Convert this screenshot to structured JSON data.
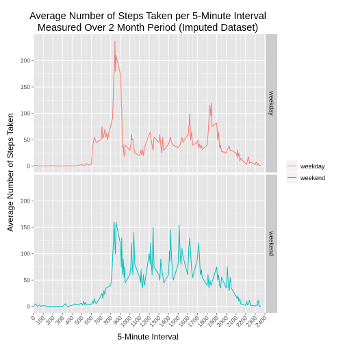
{
  "chart_data": {
    "type": "line",
    "title_lines": [
      "Average Number of Steps Taken per 5-Minute Interval",
      "Measured Over 2 Month Period (Imputed Dataset)"
    ],
    "xlabel": "5-Minute Interval",
    "ylabel": "Average Number of Steps Taken",
    "xlim": [
      0,
      2400
    ],
    "ylim": [
      -12,
      250
    ],
    "x_ticks": [
      0,
      100,
      200,
      300,
      400,
      500,
      600,
      700,
      800,
      900,
      1000,
      1100,
      1200,
      1300,
      1400,
      1500,
      1600,
      1700,
      1800,
      1900,
      2000,
      2100,
      2200,
      2300,
      2400
    ],
    "y_ticks": [
      0,
      50,
      100,
      150,
      200
    ],
    "grid": true,
    "legend_position": "right",
    "facets": [
      "weekday",
      "weekend"
    ],
    "series": [
      {
        "name": "weekday",
        "color": "#F8766D",
        "points": [
          [
            0,
            2
          ],
          [
            50,
            0.5
          ],
          [
            100,
            0.5
          ],
          [
            150,
            0.5
          ],
          [
            200,
            1
          ],
          [
            250,
            0.3
          ],
          [
            300,
            0.3
          ],
          [
            350,
            0.5
          ],
          [
            400,
            0.3
          ],
          [
            450,
            1
          ],
          [
            500,
            3
          ],
          [
            530,
            1
          ],
          [
            550,
            5
          ],
          [
            570,
            2
          ],
          [
            600,
            4
          ],
          [
            610,
            30
          ],
          [
            620,
            45
          ],
          [
            630,
            55
          ],
          [
            650,
            45
          ],
          [
            700,
            50
          ],
          [
            710,
            75
          ],
          [
            715,
            55
          ],
          [
            720,
            52
          ],
          [
            730,
            60
          ],
          [
            740,
            70
          ],
          [
            750,
            55
          ],
          [
            760,
            62
          ],
          [
            770,
            50
          ],
          [
            780,
            62
          ],
          [
            800,
            75
          ],
          [
            810,
            85
          ],
          [
            820,
            90
          ],
          [
            830,
            150
          ],
          [
            835,
            175
          ],
          [
            840,
            185
          ],
          [
            845,
            237
          ],
          [
            850,
            180
          ],
          [
            855,
            210
          ],
          [
            900,
            175
          ],
          [
            905,
            170
          ],
          [
            910,
            115
          ],
          [
            915,
            110
          ],
          [
            920,
            55
          ],
          [
            925,
            35
          ],
          [
            930,
            40
          ],
          [
            940,
            18
          ],
          [
            950,
            40
          ],
          [
            1000,
            30
          ],
          [
            1005,
            38
          ],
          [
            1010,
            42
          ],
          [
            1015,
            60
          ],
          [
            1020,
            50
          ],
          [
            1030,
            52
          ],
          [
            1040,
            35
          ],
          [
            1050,
            25
          ],
          [
            1100,
            20
          ],
          [
            1110,
            30
          ],
          [
            1120,
            22
          ],
          [
            1130,
            32
          ],
          [
            1140,
            20
          ],
          [
            1150,
            35
          ],
          [
            1200,
            60
          ],
          [
            1210,
            65
          ],
          [
            1220,
            50
          ],
          [
            1230,
            40
          ],
          [
            1240,
            30
          ],
          [
            1250,
            55
          ],
          [
            1300,
            45
          ],
          [
            1310,
            60
          ],
          [
            1320,
            40
          ],
          [
            1330,
            25
          ],
          [
            1340,
            55
          ],
          [
            1350,
            30
          ],
          [
            1400,
            42
          ],
          [
            1420,
            55
          ],
          [
            1430,
            45
          ],
          [
            1450,
            40
          ],
          [
            1500,
            35
          ],
          [
            1520,
            40
          ],
          [
            1540,
            55
          ],
          [
            1550,
            45
          ],
          [
            1600,
            60
          ],
          [
            1605,
            60
          ],
          [
            1610,
            75
          ],
          [
            1615,
            80
          ],
          [
            1620,
            100
          ],
          [
            1630,
            50
          ],
          [
            1640,
            65
          ],
          [
            1650,
            40
          ],
          [
            1700,
            45
          ],
          [
            1705,
            50
          ],
          [
            1710,
            35
          ],
          [
            1720,
            42
          ],
          [
            1730,
            35
          ],
          [
            1740,
            40
          ],
          [
            1750,
            32
          ],
          [
            1800,
            40
          ],
          [
            1810,
            60
          ],
          [
            1820,
            90
          ],
          [
            1830,
            115
          ],
          [
            1840,
            95
          ],
          [
            1845,
            120
          ],
          [
            1850,
            75
          ],
          [
            1900,
            82
          ],
          [
            1910,
            50
          ],
          [
            1920,
            65
          ],
          [
            1930,
            35
          ],
          [
            1940,
            40
          ],
          [
            1950,
            28
          ],
          [
            2000,
            25
          ],
          [
            2010,
            32
          ],
          [
            2020,
            35
          ],
          [
            2030,
            38
          ],
          [
            2040,
            30
          ],
          [
            2050,
            30
          ],
          [
            2100,
            25
          ],
          [
            2110,
            20
          ],
          [
            2115,
            30
          ],
          [
            2120,
            15
          ],
          [
            2130,
            25
          ],
          [
            2140,
            10
          ],
          [
            2150,
            15
          ],
          [
            2200,
            5
          ],
          [
            2210,
            3
          ],
          [
            2220,
            12
          ],
          [
            2230,
            18
          ],
          [
            2240,
            5
          ],
          [
            2250,
            8
          ],
          [
            2300,
            3
          ],
          [
            2310,
            8
          ],
          [
            2320,
            2
          ],
          [
            2330,
            5
          ],
          [
            2340,
            1
          ],
          [
            2350,
            2
          ],
          [
            2355,
            1
          ]
        ]
      },
      {
        "name": "weekend",
        "color": "#00BFC4",
        "points": [
          [
            0,
            0
          ],
          [
            20,
            5
          ],
          [
            40,
            0
          ],
          [
            60,
            3
          ],
          [
            80,
            0
          ],
          [
            100,
            2
          ],
          [
            150,
            0
          ],
          [
            200,
            0
          ],
          [
            250,
            0
          ],
          [
            300,
            0
          ],
          [
            330,
            5
          ],
          [
            350,
            0
          ],
          [
            400,
            2
          ],
          [
            430,
            5
          ],
          [
            450,
            3
          ],
          [
            500,
            6
          ],
          [
            510,
            2
          ],
          [
            520,
            10
          ],
          [
            530,
            4
          ],
          [
            540,
            8
          ],
          [
            550,
            3
          ],
          [
            600,
            4
          ],
          [
            610,
            10
          ],
          [
            620,
            6
          ],
          [
            630,
            15
          ],
          [
            640,
            8
          ],
          [
            650,
            5
          ],
          [
            700,
            20
          ],
          [
            710,
            25
          ],
          [
            720,
            15
          ],
          [
            730,
            30
          ],
          [
            740,
            22
          ],
          [
            750,
            35
          ],
          [
            800,
            40
          ],
          [
            810,
            55
          ],
          [
            815,
            70
          ],
          [
            820,
            90
          ],
          [
            830,
            130
          ],
          [
            835,
            160
          ],
          [
            840,
            145
          ],
          [
            845,
            110
          ],
          [
            850,
            100
          ],
          [
            855,
            160
          ],
          [
            900,
            120
          ],
          [
            905,
            100
          ],
          [
            910,
            75
          ],
          [
            915,
            130
          ],
          [
            920,
            80
          ],
          [
            925,
            60
          ],
          [
            930,
            90
          ],
          [
            940,
            55
          ],
          [
            945,
            75
          ],
          [
            950,
            45
          ],
          [
            1000,
            60
          ],
          [
            1010,
            80
          ],
          [
            1015,
            120
          ],
          [
            1020,
            95
          ],
          [
            1030,
            60
          ],
          [
            1040,
            140
          ],
          [
            1045,
            110
          ],
          [
            1050,
            80
          ],
          [
            1100,
            55
          ],
          [
            1110,
            45
          ],
          [
            1115,
            70
          ],
          [
            1120,
            50
          ],
          [
            1130,
            35
          ],
          [
            1140,
            60
          ],
          [
            1150,
            40
          ],
          [
            1200,
            100
          ],
          [
            1210,
            80
          ],
          [
            1215,
            120
          ],
          [
            1220,
            90
          ],
          [
            1230,
            60
          ],
          [
            1240,
            150
          ],
          [
            1245,
            110
          ],
          [
            1250,
            75
          ],
          [
            1300,
            60
          ],
          [
            1310,
            50
          ],
          [
            1320,
            90
          ],
          [
            1330,
            70
          ],
          [
            1340,
            60
          ],
          [
            1350,
            45
          ],
          [
            1400,
            60
          ],
          [
            1410,
            105
          ],
          [
            1415,
            85
          ],
          [
            1420,
            145
          ],
          [
            1425,
            120
          ],
          [
            1430,
            100
          ],
          [
            1440,
            70
          ],
          [
            1450,
            50
          ],
          [
            1500,
            80
          ],
          [
            1510,
            155
          ],
          [
            1515,
            130
          ],
          [
            1520,
            100
          ],
          [
            1530,
            80
          ],
          [
            1540,
            110
          ],
          [
            1550,
            95
          ],
          [
            1600,
            60
          ],
          [
            1610,
            110
          ],
          [
            1620,
            130
          ],
          [
            1630,
            100
          ],
          [
            1640,
            70
          ],
          [
            1650,
            55
          ],
          [
            1700,
            90
          ],
          [
            1710,
            120
          ],
          [
            1720,
            100
          ],
          [
            1730,
            60
          ],
          [
            1740,
            70
          ],
          [
            1750,
            55
          ],
          [
            1800,
            40
          ],
          [
            1810,
            60
          ],
          [
            1820,
            35
          ],
          [
            1830,
            50
          ],
          [
            1840,
            40
          ],
          [
            1850,
            45
          ],
          [
            1900,
            75
          ],
          [
            1910,
            50
          ],
          [
            1920,
            60
          ],
          [
            1930,
            40
          ],
          [
            1940,
            35
          ],
          [
            1950,
            55
          ],
          [
            2000,
            35
          ],
          [
            2010,
            75
          ],
          [
            2015,
            60
          ],
          [
            2020,
            40
          ],
          [
            2030,
            30
          ],
          [
            2040,
            55
          ],
          [
            2050,
            35
          ],
          [
            2100,
            20
          ],
          [
            2110,
            15
          ],
          [
            2120,
            20
          ],
          [
            2130,
            10
          ],
          [
            2140,
            15
          ],
          [
            2150,
            5
          ],
          [
            2200,
            2
          ],
          [
            2210,
            10
          ],
          [
            2220,
            3
          ],
          [
            2230,
            5
          ],
          [
            2240,
            12
          ],
          [
            2250,
            2
          ],
          [
            2300,
            1
          ],
          [
            2310,
            3
          ],
          [
            2320,
            1
          ],
          [
            2330,
            12
          ],
          [
            2340,
            0
          ],
          [
            2350,
            1
          ],
          [
            2355,
            0
          ]
        ]
      }
    ]
  }
}
